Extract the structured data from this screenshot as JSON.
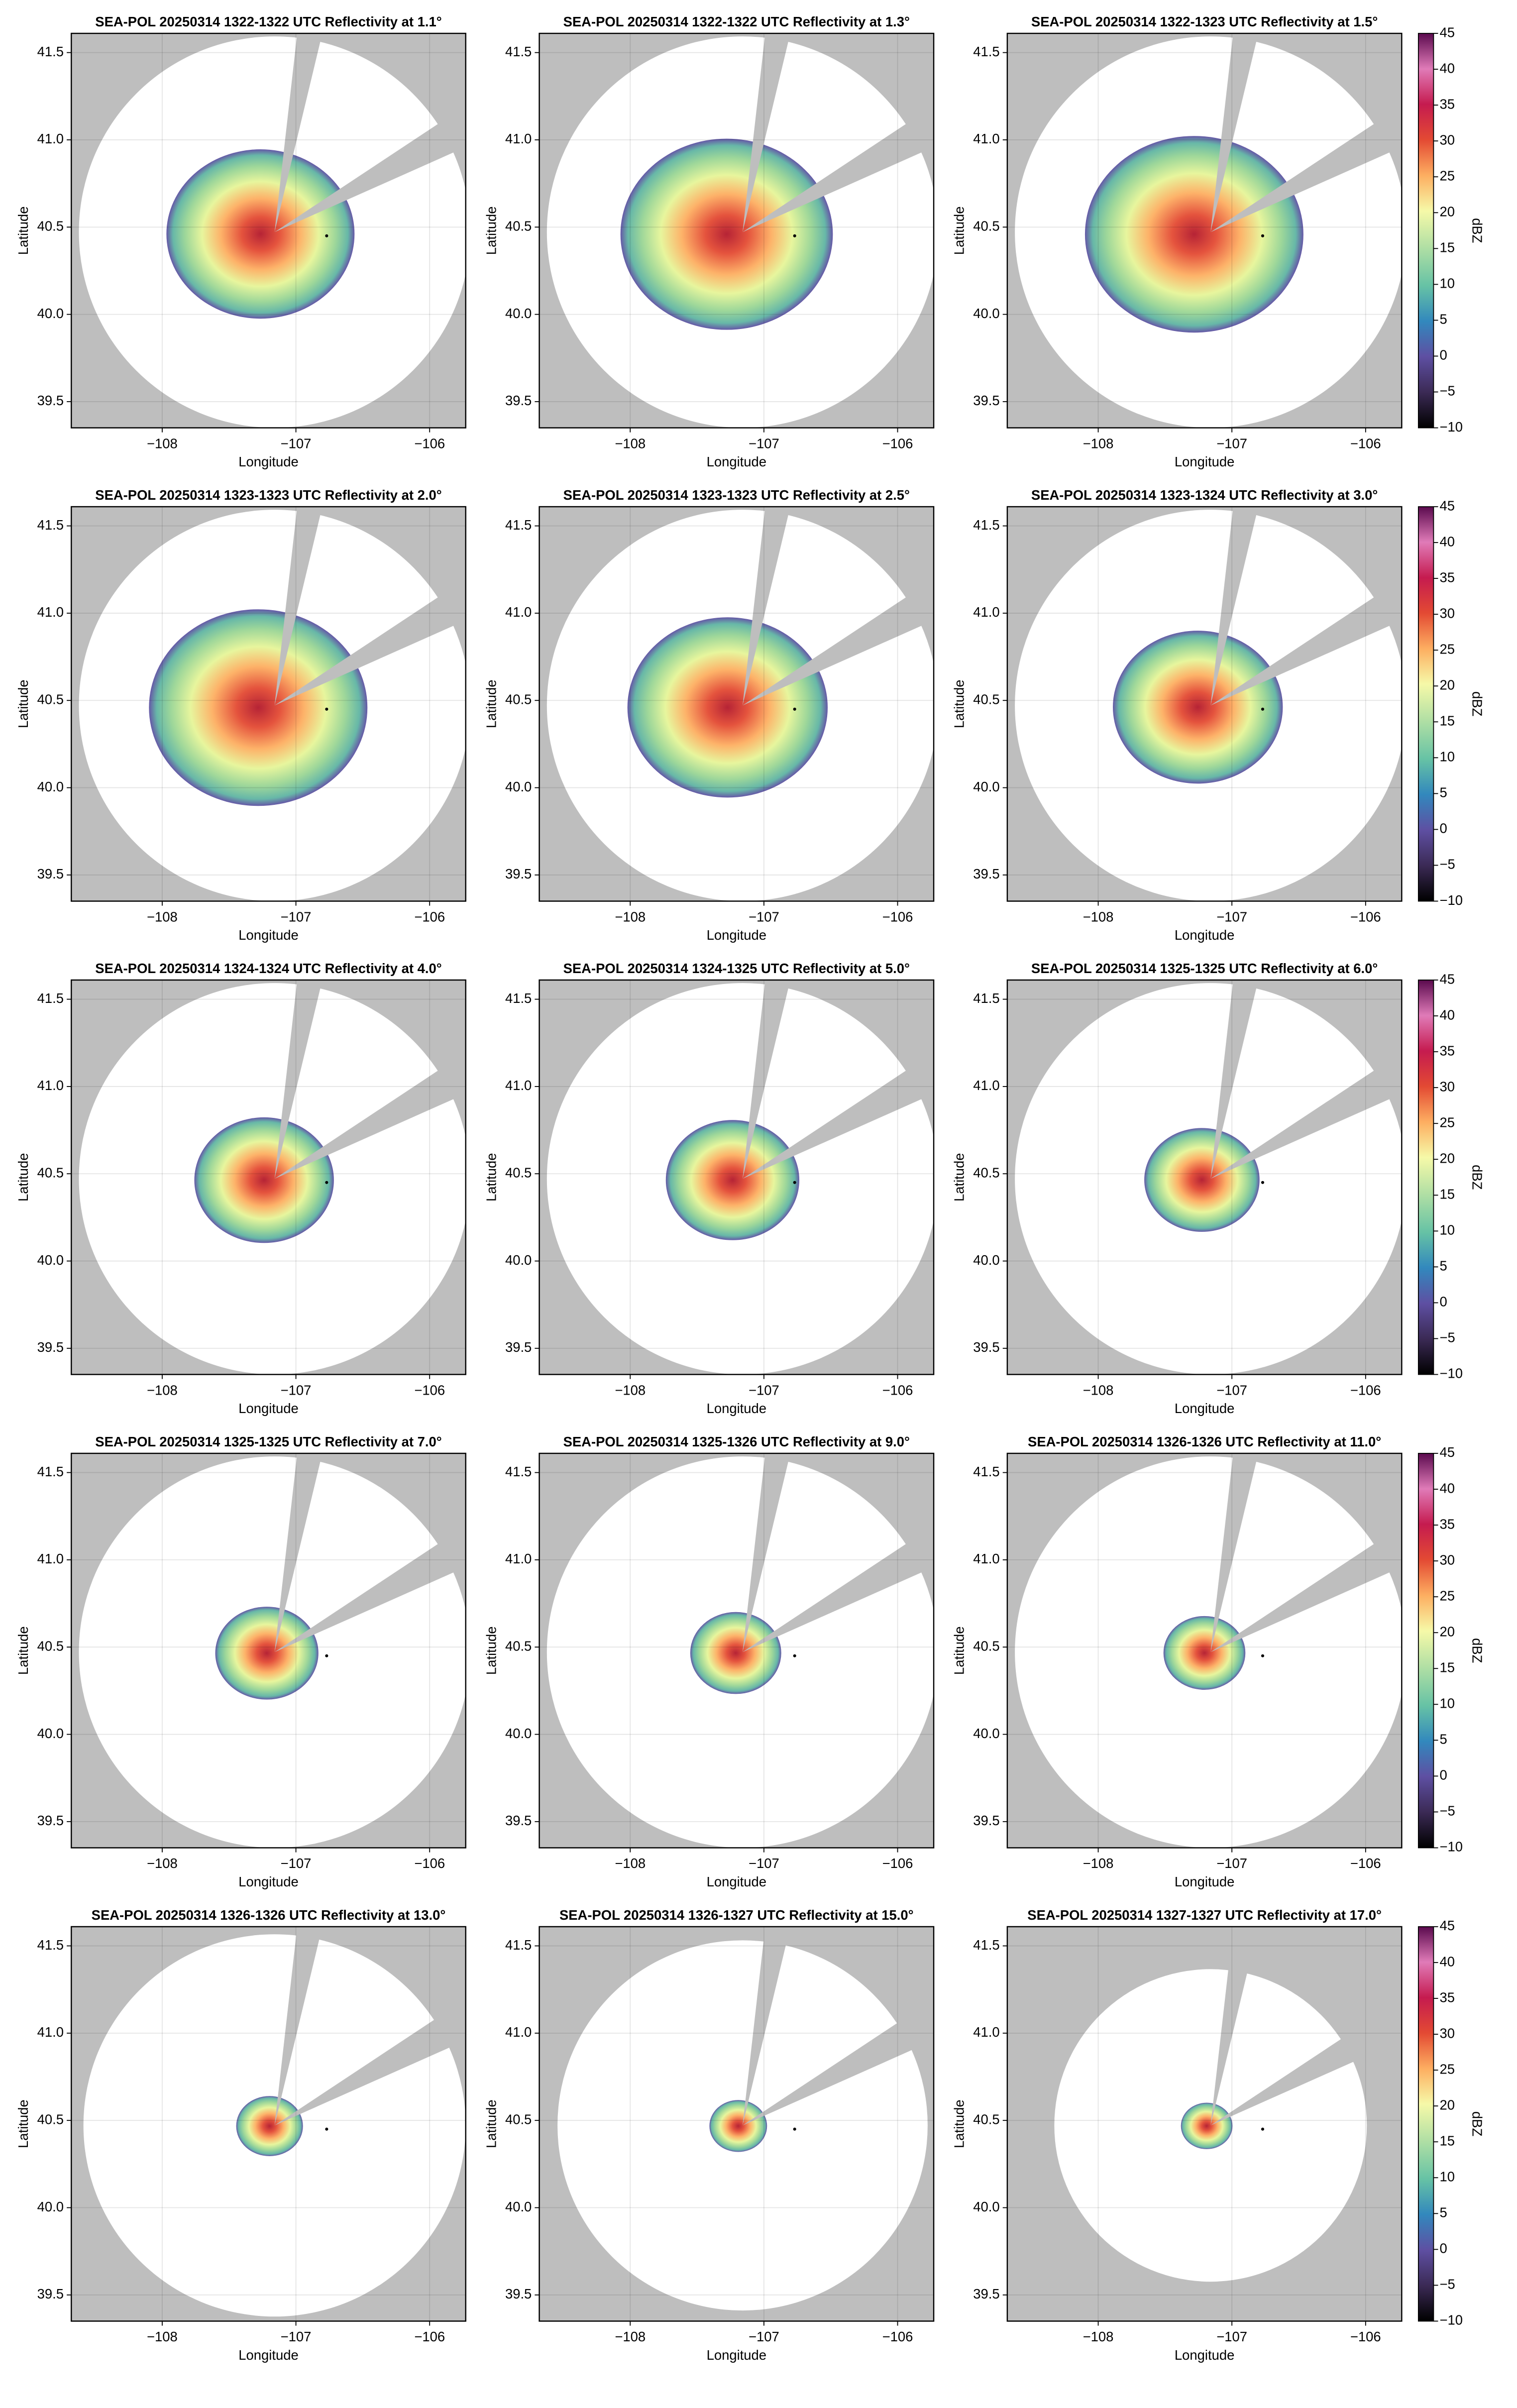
{
  "chart_data": [
    {
      "type": "radar",
      "title": "SEA-POL 20250314 1322-1322 UTC Reflectivity at 1.1°",
      "xlabel": "Longitude",
      "ylabel": "Latitude",
      "xlim": [
        -108.68,
        -105.73
      ],
      "ylim": [
        39.35,
        41.61
      ],
      "xticks": [
        {
          "value": -108,
          "label": "−108"
        },
        {
          "value": -107,
          "label": "−107"
        },
        {
          "value": -106,
          "label": "−106"
        }
      ],
      "yticks": [
        39.5,
        {
          "value": 40,
          "label": "40.0"
        },
        40.5,
        {
          "value": 41,
          "label": "41.0"
        },
        41.5
      ],
      "grid": true
    },
    {
      "type": "radar",
      "title": "SEA-POL 20250314 1322-1322 UTC Reflectivity at 1.3°",
      "xlabel": "Longitude",
      "ylabel": "Latitude",
      "xlim": [
        -108.68,
        -105.73
      ],
      "ylim": [
        39.35,
        41.61
      ],
      "xticks": [
        {
          "value": -108,
          "label": "−108"
        },
        {
          "value": -107,
          "label": "−107"
        },
        {
          "value": -106,
          "label": "−106"
        }
      ],
      "yticks": [
        39.5,
        {
          "value": 40,
          "label": "40.0"
        },
        40.5,
        {
          "value": 41,
          "label": "41.0"
        },
        41.5
      ],
      "grid": true
    },
    {
      "type": "radar",
      "title": "SEA-POL 20250314 1322-1323 UTC Reflectivity at 1.5°",
      "xlabel": "Longitude",
      "ylabel": "Latitude",
      "xlim": [
        -108.68,
        -105.73
      ],
      "ylim": [
        39.35,
        41.61
      ],
      "xticks": [
        {
          "value": -108,
          "label": "−108"
        },
        {
          "value": -107,
          "label": "−107"
        },
        {
          "value": -106,
          "label": "−106"
        }
      ],
      "yticks": [
        39.5,
        {
          "value": 40,
          "label": "40.0"
        },
        40.5,
        {
          "value": 41,
          "label": "41.0"
        },
        41.5
      ],
      "grid": true,
      "colorbar": {
        "label": "dBZ",
        "lim": [
          -10,
          45
        ],
        "ticks": [
          {
            "value": -10,
            "label": "−10"
          },
          {
            "value": -5,
            "label": "−5"
          },
          0,
          5,
          10,
          15,
          20,
          25,
          30,
          35,
          40,
          45
        ]
      }
    },
    {
      "type": "radar",
      "title": "SEA-POL 20250314 1323-1323 UTC Reflectivity at 2.0°",
      "xlabel": "Longitude",
      "ylabel": "Latitude",
      "xlim": [
        -108.68,
        -105.73
      ],
      "ylim": [
        39.35,
        41.61
      ],
      "xticks": [
        {
          "value": -108,
          "label": "−108"
        },
        {
          "value": -107,
          "label": "−107"
        },
        {
          "value": -106,
          "label": "−106"
        }
      ],
      "yticks": [
        39.5,
        {
          "value": 40,
          "label": "40.0"
        },
        40.5,
        {
          "value": 41,
          "label": "41.0"
        },
        41.5
      ],
      "grid": true
    },
    {
      "type": "radar",
      "title": "SEA-POL 20250314 1323-1323 UTC Reflectivity at 2.5°",
      "xlabel": "Longitude",
      "ylabel": "Latitude",
      "xlim": [
        -108.68,
        -105.73
      ],
      "ylim": [
        39.35,
        41.61
      ],
      "xticks": [
        {
          "value": -108,
          "label": "−108"
        },
        {
          "value": -107,
          "label": "−107"
        },
        {
          "value": -106,
          "label": "−106"
        }
      ],
      "yticks": [
        39.5,
        {
          "value": 40,
          "label": "40.0"
        },
        40.5,
        {
          "value": 41,
          "label": "41.0"
        },
        41.5
      ],
      "grid": true
    },
    {
      "type": "radar",
      "title": "SEA-POL 20250314 1323-1324 UTC Reflectivity at 3.0°",
      "xlabel": "Longitude",
      "ylabel": "Latitude",
      "xlim": [
        -108.68,
        -105.73
      ],
      "ylim": [
        39.35,
        41.61
      ],
      "xticks": [
        {
          "value": -108,
          "label": "−108"
        },
        {
          "value": -107,
          "label": "−107"
        },
        {
          "value": -106,
          "label": "−106"
        }
      ],
      "yticks": [
        39.5,
        {
          "value": 40,
          "label": "40.0"
        },
        40.5,
        {
          "value": 41,
          "label": "41.0"
        },
        41.5
      ],
      "grid": true,
      "colorbar": {
        "label": "dBZ",
        "lim": [
          -10,
          45
        ],
        "ticks": [
          {
            "value": -10,
            "label": "−10"
          },
          {
            "value": -5,
            "label": "−5"
          },
          0,
          5,
          10,
          15,
          20,
          25,
          30,
          35,
          40,
          45
        ]
      }
    },
    {
      "type": "radar",
      "title": "SEA-POL 20250314 1324-1324 UTC Reflectivity at 4.0°",
      "xlabel": "Longitude",
      "ylabel": "Latitude",
      "xlim": [
        -108.68,
        -105.73
      ],
      "ylim": [
        39.35,
        41.61
      ],
      "xticks": [
        {
          "value": -108,
          "label": "−108"
        },
        {
          "value": -107,
          "label": "−107"
        },
        {
          "value": -106,
          "label": "−106"
        }
      ],
      "yticks": [
        39.5,
        {
          "value": 40,
          "label": "40.0"
        },
        40.5,
        {
          "value": 41,
          "label": "41.0"
        },
        41.5
      ],
      "grid": true
    },
    {
      "type": "radar",
      "title": "SEA-POL 20250314 1324-1325 UTC Reflectivity at 5.0°",
      "xlabel": "Longitude",
      "ylabel": "Latitude",
      "xlim": [
        -108.68,
        -105.73
      ],
      "ylim": [
        39.35,
        41.61
      ],
      "xticks": [
        {
          "value": -108,
          "label": "−108"
        },
        {
          "value": -107,
          "label": "−107"
        },
        {
          "value": -106,
          "label": "−106"
        }
      ],
      "yticks": [
        39.5,
        {
          "value": 40,
          "label": "40.0"
        },
        40.5,
        {
          "value": 41,
          "label": "41.0"
        },
        41.5
      ],
      "grid": true
    },
    {
      "type": "radar",
      "title": "SEA-POL 20250314 1325-1325 UTC Reflectivity at 6.0°",
      "xlabel": "Longitude",
      "ylabel": "Latitude",
      "xlim": [
        -108.68,
        -105.73
      ],
      "ylim": [
        39.35,
        41.61
      ],
      "xticks": [
        {
          "value": -108,
          "label": "−108"
        },
        {
          "value": -107,
          "label": "−107"
        },
        {
          "value": -106,
          "label": "−106"
        }
      ],
      "yticks": [
        39.5,
        {
          "value": 40,
          "label": "40.0"
        },
        40.5,
        {
          "value": 41,
          "label": "41.0"
        },
        41.5
      ],
      "grid": true,
      "colorbar": {
        "label": "dBZ",
        "lim": [
          -10,
          45
        ],
        "ticks": [
          {
            "value": -10,
            "label": "−10"
          },
          {
            "value": -5,
            "label": "−5"
          },
          0,
          5,
          10,
          15,
          20,
          25,
          30,
          35,
          40,
          45
        ]
      }
    },
    {
      "type": "radar",
      "title": "SEA-POL 20250314 1325-1325 UTC Reflectivity at 7.0°",
      "xlabel": "Longitude",
      "ylabel": "Latitude",
      "xlim": [
        -108.68,
        -105.73
      ],
      "ylim": [
        39.35,
        41.61
      ],
      "xticks": [
        {
          "value": -108,
          "label": "−108"
        },
        {
          "value": -107,
          "label": "−107"
        },
        {
          "value": -106,
          "label": "−106"
        }
      ],
      "yticks": [
        39.5,
        {
          "value": 40,
          "label": "40.0"
        },
        40.5,
        {
          "value": 41,
          "label": "41.0"
        },
        41.5
      ],
      "grid": true
    },
    {
      "type": "radar",
      "title": "SEA-POL 20250314 1325-1326 UTC Reflectivity at 9.0°",
      "xlabel": "Longitude",
      "ylabel": "Latitude",
      "xlim": [
        -108.68,
        -105.73
      ],
      "ylim": [
        39.35,
        41.61
      ],
      "xticks": [
        {
          "value": -108,
          "label": "−108"
        },
        {
          "value": -107,
          "label": "−107"
        },
        {
          "value": -106,
          "label": "−106"
        }
      ],
      "yticks": [
        39.5,
        {
          "value": 40,
          "label": "40.0"
        },
        40.5,
        {
          "value": 41,
          "label": "41.0"
        },
        41.5
      ],
      "grid": true
    },
    {
      "type": "radar",
      "title": "SEA-POL 20250314 1326-1326 UTC Reflectivity at 11.0°",
      "xlabel": "Longitude",
      "ylabel": "Latitude",
      "xlim": [
        -108.68,
        -105.73
      ],
      "ylim": [
        39.35,
        41.61
      ],
      "xticks": [
        {
          "value": -108,
          "label": "−108"
        },
        {
          "value": -107,
          "label": "−107"
        },
        {
          "value": -106,
          "label": "−106"
        }
      ],
      "yticks": [
        39.5,
        {
          "value": 40,
          "label": "40.0"
        },
        40.5,
        {
          "value": 41,
          "label": "41.0"
        },
        41.5
      ],
      "grid": true,
      "colorbar": {
        "label": "dBZ",
        "lim": [
          -10,
          45
        ],
        "ticks": [
          {
            "value": -10,
            "label": "−10"
          },
          {
            "value": -5,
            "label": "−5"
          },
          0,
          5,
          10,
          15,
          20,
          25,
          30,
          35,
          40,
          45
        ]
      }
    },
    {
      "type": "radar",
      "title": "SEA-POL 20250314 1326-1326 UTC Reflectivity at 13.0°",
      "xlabel": "Longitude",
      "ylabel": "Latitude",
      "xlim": [
        -108.68,
        -105.73
      ],
      "ylim": [
        39.35,
        41.61
      ],
      "xticks": [
        {
          "value": -108,
          "label": "−108"
        },
        {
          "value": -107,
          "label": "−107"
        },
        {
          "value": -106,
          "label": "−106"
        }
      ],
      "yticks": [
        39.5,
        {
          "value": 40,
          "label": "40.0"
        },
        40.5,
        {
          "value": 41,
          "label": "41.0"
        },
        41.5
      ],
      "grid": true
    },
    {
      "type": "radar",
      "title": "SEA-POL 20250314 1326-1327 UTC Reflectivity at 15.0°",
      "xlabel": "Longitude",
      "ylabel": "Latitude",
      "xlim": [
        -108.68,
        -105.73
      ],
      "ylim": [
        39.35,
        41.61
      ],
      "xticks": [
        {
          "value": -108,
          "label": "−108"
        },
        {
          "value": -107,
          "label": "−107"
        },
        {
          "value": -106,
          "label": "−106"
        }
      ],
      "yticks": [
        39.5,
        {
          "value": 40,
          "label": "40.0"
        },
        40.5,
        {
          "value": 41,
          "label": "41.0"
        },
        41.5
      ],
      "grid": true
    },
    {
      "type": "radar",
      "title": "SEA-POL 20250314 1327-1327 UTC Reflectivity at 17.0°",
      "xlabel": "Longitude",
      "ylabel": "Latitude",
      "xlim": [
        -108.68,
        -105.73
      ],
      "ylim": [
        39.35,
        41.61
      ],
      "xticks": [
        {
          "value": -108,
          "label": "−108"
        },
        {
          "value": -107,
          "label": "−107"
        },
        {
          "value": -106,
          "label": "−106"
        }
      ],
      "yticks": [
        39.5,
        {
          "value": 40,
          "label": "40.0"
        },
        40.5,
        {
          "value": 41,
          "label": "41.0"
        },
        41.5
      ],
      "grid": true,
      "colorbar": {
        "label": "dBZ",
        "lim": [
          -10,
          45
        ],
        "ticks": [
          {
            "value": -10,
            "label": "−10"
          },
          {
            "value": -5,
            "label": "−5"
          },
          0,
          5,
          10,
          15,
          20,
          25,
          30,
          35,
          40,
          45
        ]
      }
    }
  ]
}
